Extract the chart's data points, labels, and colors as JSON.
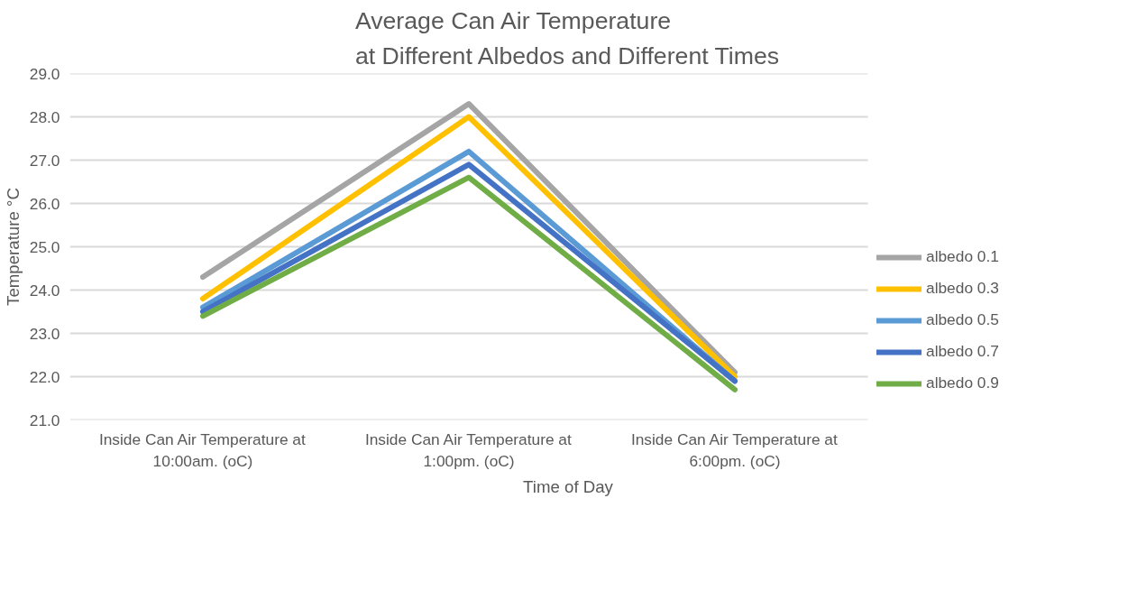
{
  "chart_data": {
    "type": "line",
    "title": "Average Can Air Temperature\nat Different Albedos and Different Times",
    "xlabel": "Time of Day",
    "ylabel": "Temperature °C",
    "categories": [
      "Inside Can Air Temperature at\n10:00am. (oC)",
      "Inside Can Air Temperature at\n1:00pm. (oC)",
      "Inside Can Air Temperature at\n6:00pm. (oC)"
    ],
    "series": [
      {
        "name": "albedo 0.1",
        "color": "#a5a5a5",
        "values": [
          24.3,
          28.3,
          22.1
        ]
      },
      {
        "name": "albedo 0.3",
        "color": "#ffc000",
        "values": [
          23.8,
          28.0,
          22.0
        ]
      },
      {
        "name": "albedo 0.5",
        "color": "#5b9bd5",
        "values": [
          23.6,
          27.2,
          21.9
        ]
      },
      {
        "name": "albedo 0.7",
        "color": "#4472c4",
        "values": [
          23.5,
          26.9,
          21.9
        ]
      },
      {
        "name": "albedo 0.9",
        "color": "#70ad47",
        "values": [
          23.4,
          26.6,
          21.7
        ]
      }
    ],
    "ylim": [
      21.0,
      29.0
    ],
    "yticks": [
      {
        "value": 21,
        "label": "21.0"
      },
      {
        "value": 22,
        "label": "22.0"
      },
      {
        "value": 23,
        "label": "23.0"
      },
      {
        "value": 24,
        "label": "24.0"
      },
      {
        "value": 25,
        "label": "25.0"
      },
      {
        "value": 26,
        "label": "26.0"
      },
      {
        "value": 27,
        "label": "27.0"
      },
      {
        "value": 28,
        "label": "28.0"
      },
      {
        "value": 29,
        "label": "29.0"
      }
    ],
    "grid": "y",
    "legend": "right",
    "marker": "none",
    "line_style": "solid"
  }
}
